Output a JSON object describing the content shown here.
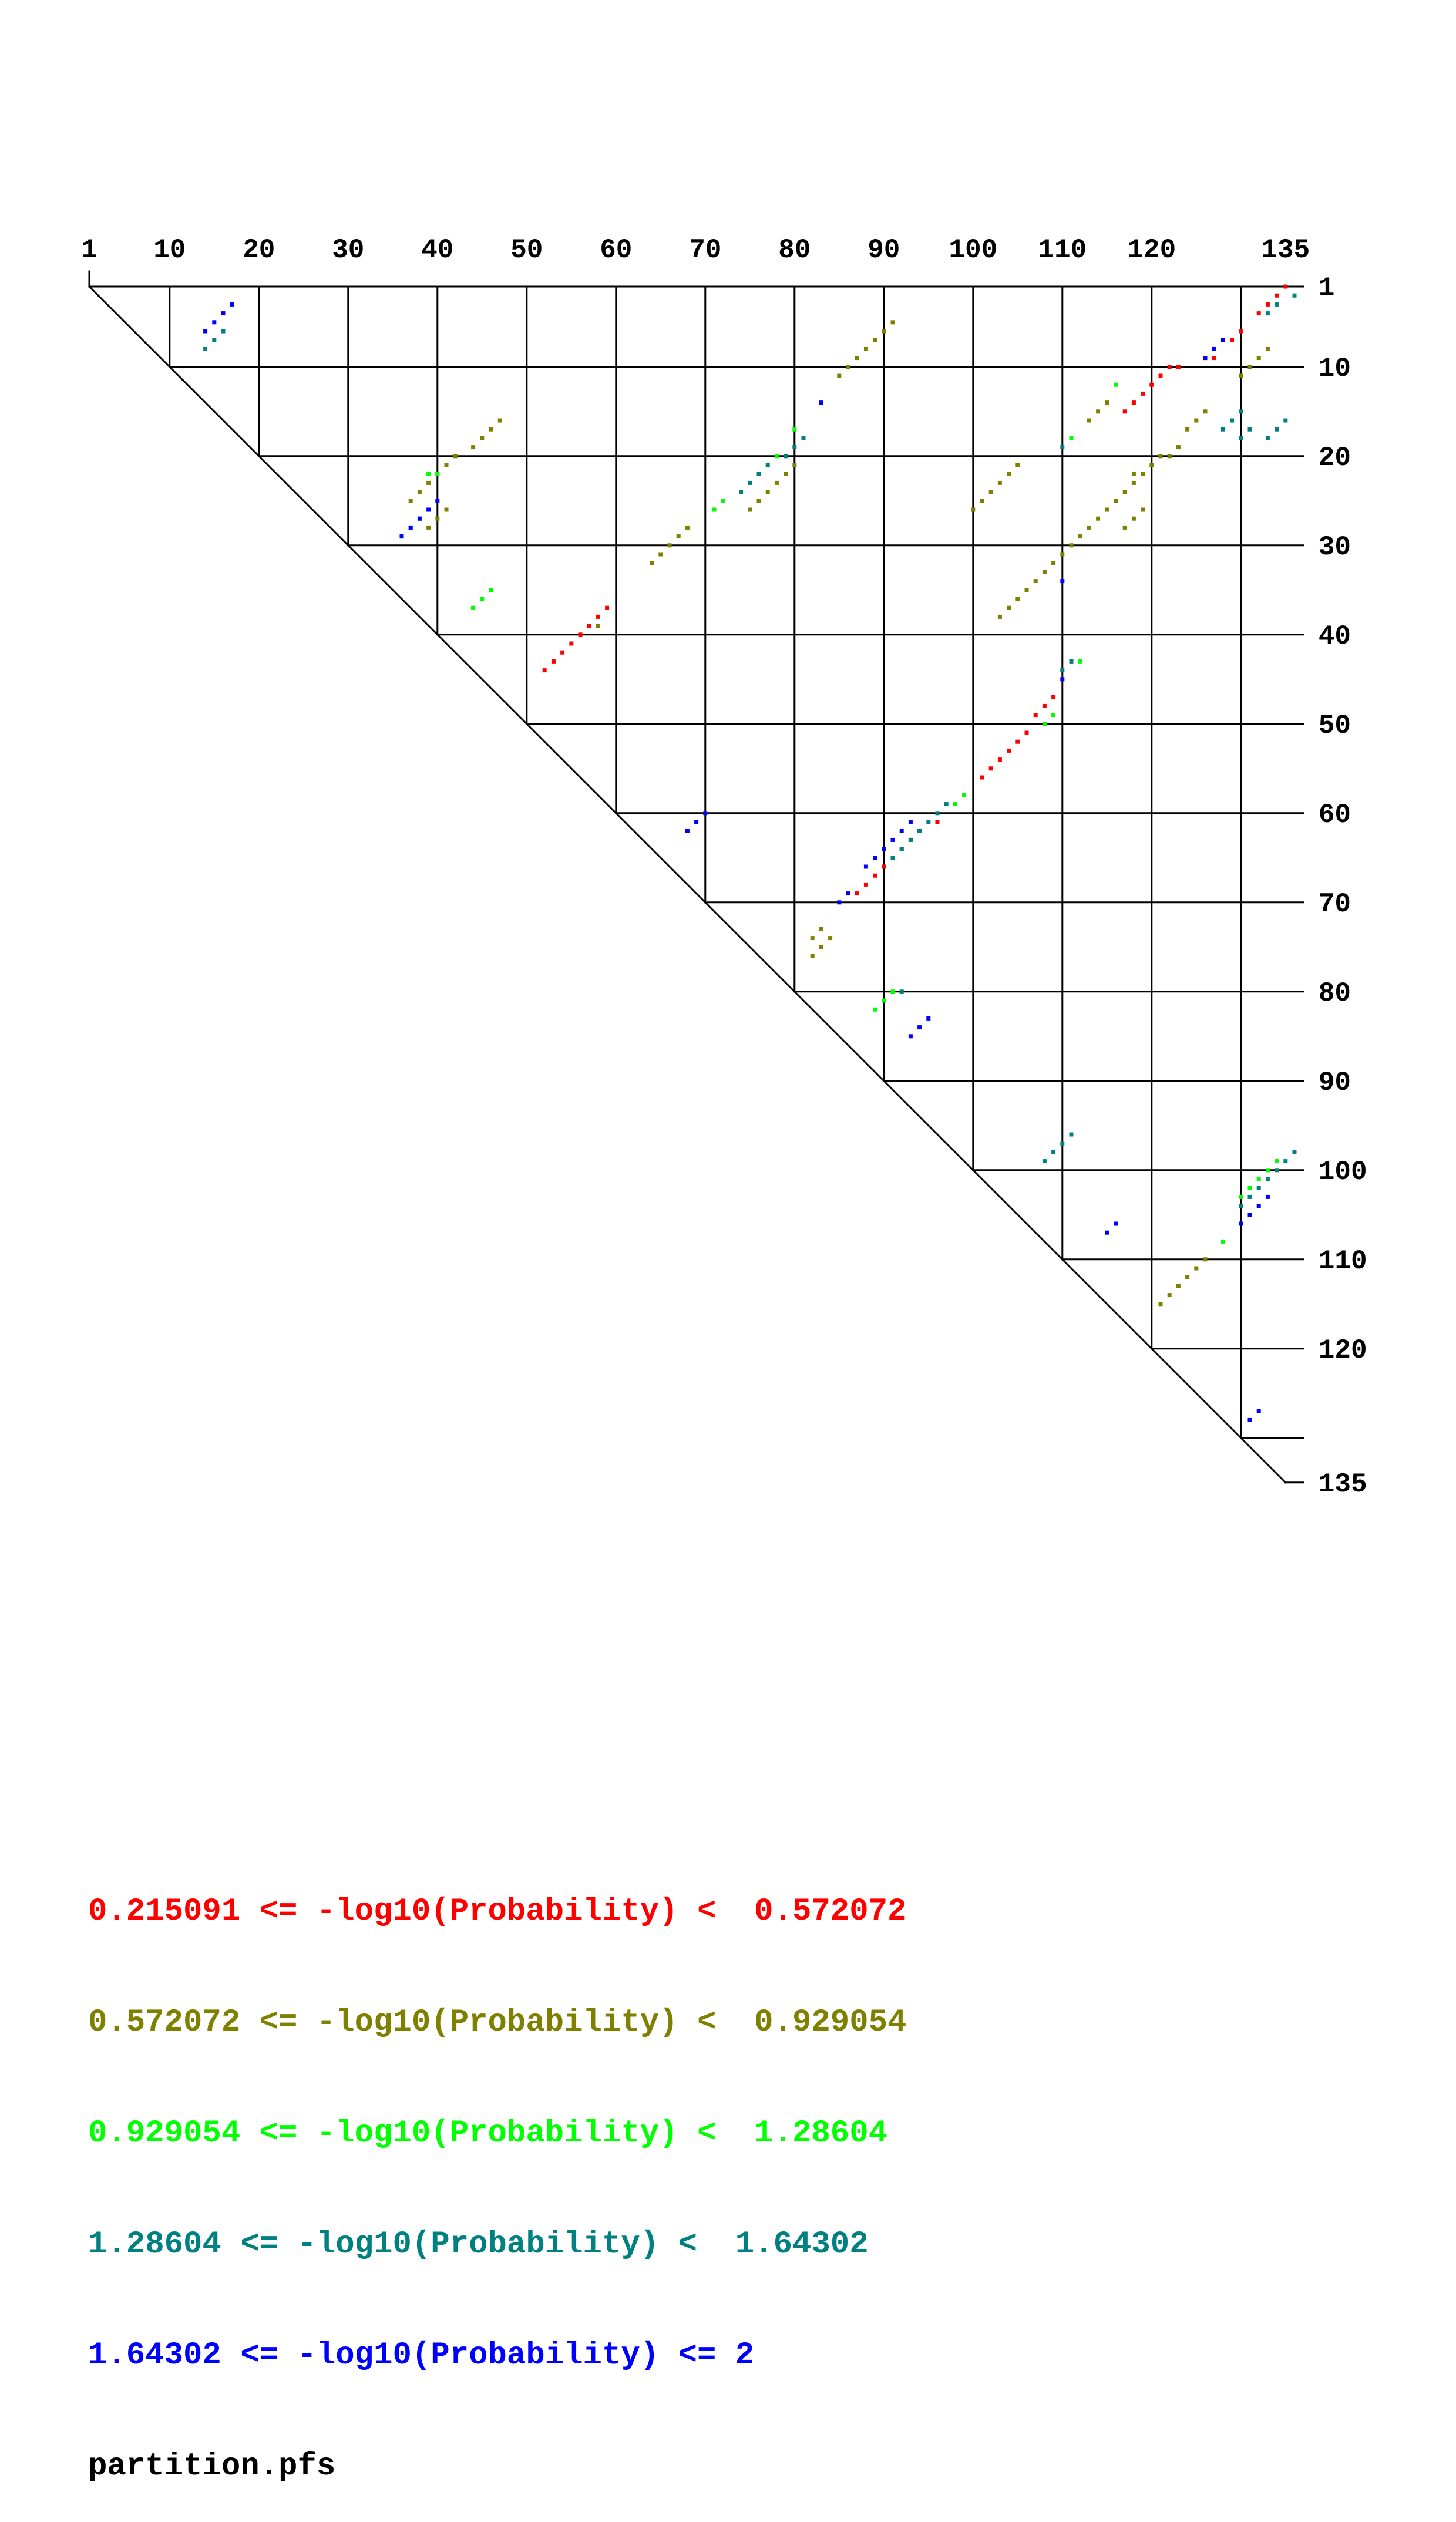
{
  "chart_data": {
    "type": "heatmap",
    "title": "",
    "n": 135,
    "x_tick_labels": [
      "1",
      "10",
      "20",
      "30",
      "40",
      "50",
      "60",
      "70",
      "80",
      "90",
      "100",
      "110",
      "120",
      "135"
    ],
    "y_tick_labels": [
      "1",
      "10",
      "20",
      "30",
      "40",
      "50",
      "60",
      "70",
      "80",
      "90",
      "100",
      "110",
      "120",
      "135"
    ],
    "grid": true,
    "legend_placement": "bottom-left",
    "series": [
      {
        "level": 0,
        "color": "#ff0000",
        "points": [
          [
            1,
            135
          ],
          [
            2,
            134
          ],
          [
            3,
            133
          ],
          [
            4,
            132
          ],
          [
            6,
            130
          ],
          [
            7,
            129
          ],
          [
            9,
            127
          ],
          [
            10,
            122
          ],
          [
            10,
            123
          ],
          [
            11,
            121
          ],
          [
            12,
            120
          ],
          [
            13,
            119
          ],
          [
            14,
            118
          ],
          [
            15,
            117
          ],
          [
            37,
            59
          ],
          [
            38,
            58
          ],
          [
            39,
            57
          ],
          [
            40,
            56
          ],
          [
            41,
            55
          ],
          [
            42,
            54
          ],
          [
            43,
            53
          ],
          [
            44,
            52
          ],
          [
            47,
            109
          ],
          [
            48,
            108
          ],
          [
            49,
            107
          ],
          [
            51,
            106
          ],
          [
            52,
            105
          ],
          [
            53,
            104
          ],
          [
            54,
            103
          ],
          [
            55,
            102
          ],
          [
            56,
            101
          ],
          [
            61,
            96
          ],
          [
            62,
            94
          ],
          [
            63,
            93
          ],
          [
            64,
            92
          ],
          [
            65,
            91
          ],
          [
            66,
            90
          ],
          [
            67,
            89
          ],
          [
            68,
            88
          ],
          [
            69,
            87
          ]
        ]
      },
      {
        "level": 1,
        "color": "#808000",
        "points": [
          [
            5,
            91
          ],
          [
            6,
            90
          ],
          [
            7,
            89
          ],
          [
            8,
            88
          ],
          [
            9,
            87
          ],
          [
            10,
            86
          ],
          [
            11,
            85
          ],
          [
            8,
            133
          ],
          [
            9,
            132
          ],
          [
            10,
            131
          ],
          [
            11,
            130
          ],
          [
            14,
            115
          ],
          [
            15,
            114
          ],
          [
            16,
            113
          ],
          [
            15,
            126
          ],
          [
            16,
            125
          ],
          [
            17,
            124
          ],
          [
            16,
            47
          ],
          [
            17,
            46
          ],
          [
            18,
            45
          ],
          [
            19,
            44
          ],
          [
            20,
            42
          ],
          [
            21,
            41
          ],
          [
            22,
            40
          ],
          [
            23,
            39
          ],
          [
            24,
            38
          ],
          [
            25,
            37
          ],
          [
            20,
            121
          ],
          [
            21,
            120
          ],
          [
            22,
            119
          ],
          [
            19,
            123
          ],
          [
            20,
            122
          ],
          [
            21,
            105
          ],
          [
            22,
            104
          ],
          [
            23,
            103
          ],
          [
            24,
            102
          ],
          [
            25,
            101
          ],
          [
            26,
            100
          ],
          [
            26,
            41
          ],
          [
            27,
            40
          ],
          [
            28,
            39
          ],
          [
            28,
            68
          ],
          [
            29,
            67
          ],
          [
            30,
            66
          ],
          [
            31,
            65
          ],
          [
            32,
            64
          ],
          [
            21,
            80
          ],
          [
            22,
            79
          ],
          [
            23,
            78
          ],
          [
            24,
            77
          ],
          [
            25,
            76
          ],
          [
            26,
            75
          ],
          [
            22,
            118
          ],
          [
            23,
            118
          ],
          [
            24,
            117
          ],
          [
            25,
            116
          ],
          [
            26,
            115
          ],
          [
            27,
            114
          ],
          [
            28,
            113
          ],
          [
            29,
            112
          ],
          [
            30,
            111
          ],
          [
            31,
            110
          ],
          [
            32,
            109
          ],
          [
            33,
            108
          ],
          [
            34,
            107
          ],
          [
            35,
            106
          ],
          [
            36,
            105
          ],
          [
            37,
            104
          ],
          [
            38,
            103
          ],
          [
            26,
            119
          ],
          [
            27,
            118
          ],
          [
            28,
            117
          ],
          [
            39,
            58
          ],
          [
            73,
            83
          ],
          [
            74,
            82
          ],
          [
            74,
            84
          ],
          [
            75,
            83
          ],
          [
            76,
            82
          ],
          [
            110,
            126
          ],
          [
            111,
            125
          ],
          [
            112,
            124
          ],
          [
            113,
            123
          ],
          [
            114,
            122
          ],
          [
            115,
            121
          ]
        ]
      },
      {
        "level": 2,
        "color": "#00ff00",
        "points": [
          [
            12,
            116
          ],
          [
            17,
            80
          ],
          [
            18,
            111
          ],
          [
            20,
            78
          ],
          [
            22,
            39
          ],
          [
            22,
            40
          ],
          [
            24,
            74
          ],
          [
            25,
            72
          ],
          [
            26,
            71
          ],
          [
            35,
            46
          ],
          [
            36,
            45
          ],
          [
            37,
            44
          ],
          [
            43,
            112
          ],
          [
            49,
            109
          ],
          [
            50,
            108
          ],
          [
            58,
            99
          ],
          [
            59,
            98
          ],
          [
            80,
            91
          ],
          [
            81,
            90
          ],
          [
            82,
            89
          ],
          [
            99,
            134
          ],
          [
            100,
            133
          ],
          [
            101,
            132
          ],
          [
            102,
            131
          ],
          [
            103,
            130
          ],
          [
            108,
            128
          ]
        ]
      },
      {
        "level": 3,
        "color": "#008080",
        "points": [
          [
            2,
            136
          ],
          [
            3,
            134
          ],
          [
            4,
            133
          ],
          [
            6,
            16
          ],
          [
            7,
            15
          ],
          [
            8,
            14
          ],
          [
            15,
            130
          ],
          [
            16,
            129
          ],
          [
            17,
            128
          ],
          [
            16,
            135
          ],
          [
            17,
            134
          ],
          [
            18,
            133
          ],
          [
            17,
            131
          ],
          [
            18,
            130
          ],
          [
            18,
            81
          ],
          [
            19,
            80
          ],
          [
            19,
            110
          ],
          [
            20,
            79
          ],
          [
            21,
            77
          ],
          [
            22,
            76
          ],
          [
            23,
            75
          ],
          [
            24,
            74
          ],
          [
            27,
            38
          ],
          [
            28,
            37
          ],
          [
            29,
            36
          ],
          [
            43,
            111
          ],
          [
            44,
            110
          ],
          [
            59,
            97
          ],
          [
            60,
            96
          ],
          [
            61,
            95
          ],
          [
            62,
            94
          ],
          [
            63,
            93
          ],
          [
            64,
            92
          ],
          [
            65,
            91
          ],
          [
            80,
            92
          ],
          [
            96,
            111
          ],
          [
            97,
            110
          ],
          [
            98,
            109
          ],
          [
            99,
            108
          ],
          [
            98,
            136
          ],
          [
            99,
            135
          ],
          [
            100,
            134
          ],
          [
            101,
            133
          ],
          [
            102,
            132
          ],
          [
            103,
            131
          ],
          [
            104,
            130
          ]
        ]
      },
      {
        "level": 4,
        "color": "#0000ff",
        "points": [
          [
            3,
            17
          ],
          [
            4,
            16
          ],
          [
            5,
            15
          ],
          [
            6,
            14
          ],
          [
            7,
            128
          ],
          [
            8,
            127
          ],
          [
            9,
            126
          ],
          [
            14,
            83
          ],
          [
            25,
            40
          ],
          [
            26,
            39
          ],
          [
            27,
            38
          ],
          [
            28,
            37
          ],
          [
            29,
            36
          ],
          [
            34,
            110
          ],
          [
            45,
            110
          ],
          [
            60,
            70
          ],
          [
            61,
            69
          ],
          [
            62,
            68
          ],
          [
            61,
            93
          ],
          [
            62,
            92
          ],
          [
            63,
            91
          ],
          [
            64,
            90
          ],
          [
            65,
            89
          ],
          [
            66,
            88
          ],
          [
            69,
            86
          ],
          [
            70,
            85
          ],
          [
            83,
            95
          ],
          [
            84,
            94
          ],
          [
            85,
            93
          ],
          [
            106,
            116
          ],
          [
            107,
            115
          ],
          [
            103,
            133
          ],
          [
            104,
            132
          ],
          [
            105,
            131
          ],
          [
            106,
            130
          ],
          [
            127,
            132
          ],
          [
            128,
            131
          ]
        ]
      }
    ],
    "legend": [
      {
        "text": "0.215091 <= -log10(Probability) <  0.572072",
        "color": "#ff0000"
      },
      {
        "text": "0.572072 <= -log10(Probability) <  0.929054",
        "color": "#808000"
      },
      {
        "text": "0.929054 <= -log10(Probability) <  1.28604",
        "color": "#00ff00"
      },
      {
        "text": "1.28604 <= -log10(Probability) <  1.64302",
        "color": "#008080"
      },
      {
        "text": "1.64302 <= -log10(Probability) <= 2",
        "color": "#0000ff"
      }
    ],
    "filename": "partition.pfs"
  }
}
